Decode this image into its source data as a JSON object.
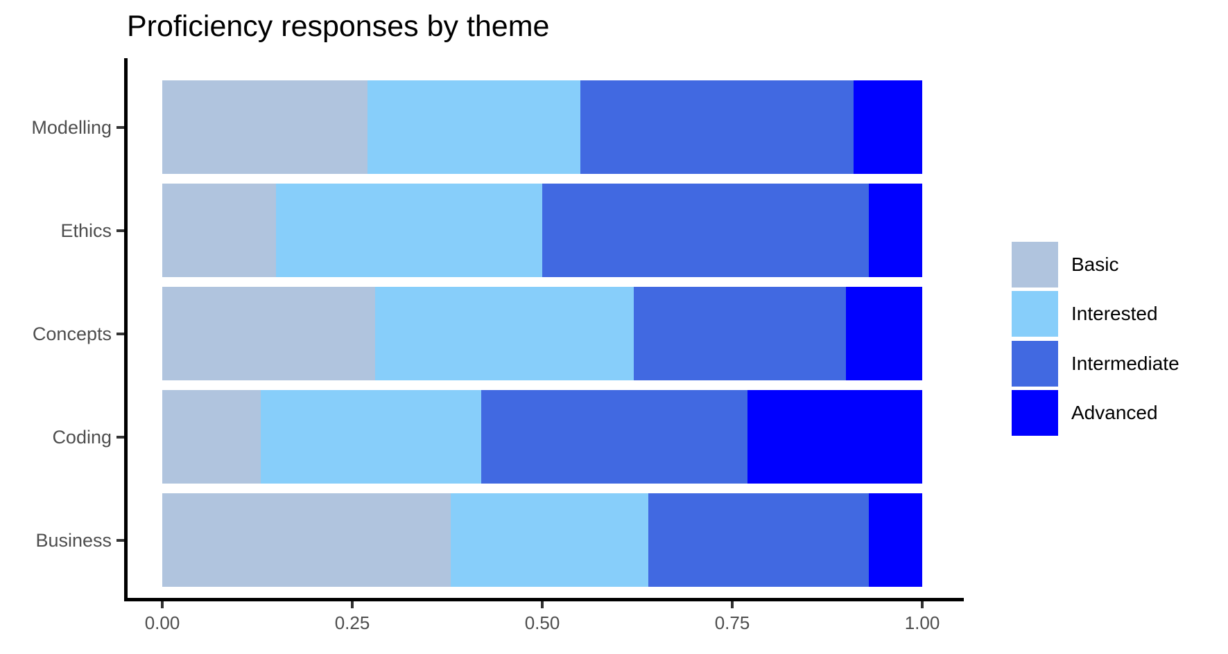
{
  "chart_data": {
    "type": "bar",
    "orientation": "horizontal",
    "stacked": true,
    "title": "Proficiency responses by theme",
    "xlabel": "",
    "ylabel": "",
    "xlim": [
      0,
      1
    ],
    "x_ticks": [
      {
        "label": "0.00",
        "value": 0.0
      },
      {
        "label": "0.25",
        "value": 0.25
      },
      {
        "label": "0.50",
        "value": 0.5
      },
      {
        "label": "0.75",
        "value": 0.75
      },
      {
        "label": "1.00",
        "value": 1.0
      }
    ],
    "categories": [
      "Modelling",
      "Ethics",
      "Concepts",
      "Coding",
      "Business"
    ],
    "series": [
      {
        "name": "Basic",
        "color": "#B0C4DE",
        "values": [
          0.27,
          0.15,
          0.28,
          0.13,
          0.38
        ]
      },
      {
        "name": "Interested",
        "color": "#87CEFA",
        "values": [
          0.28,
          0.35,
          0.34,
          0.29,
          0.26
        ]
      },
      {
        "name": "Intermediate",
        "color": "#4169E1",
        "values": [
          0.36,
          0.43,
          0.28,
          0.35,
          0.29
        ]
      },
      {
        "name": "Advanced",
        "color": "#0000FF",
        "values": [
          0.09,
          0.07,
          0.1,
          0.23,
          0.07
        ]
      }
    ],
    "legend_position": "right",
    "grid": false,
    "background_color": "#FFFFFF",
    "axis_color": "#000000",
    "tick_label_color": "#4D4D4D"
  }
}
